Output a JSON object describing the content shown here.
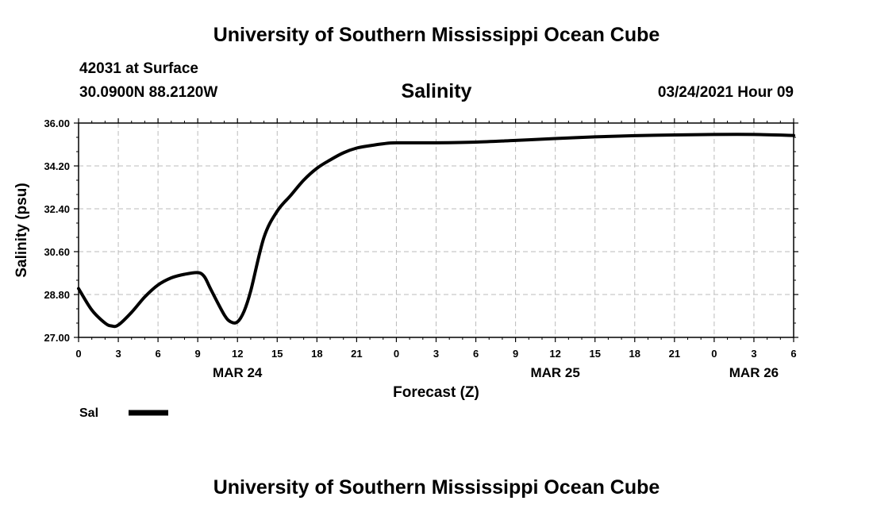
{
  "header": {
    "title": "University of Southern Mississippi Ocean Cube",
    "station": "42031 at Surface",
    "coordinates": "30.0900N 88.2120W",
    "datetime": "03/24/2021 Hour 09"
  },
  "footer": {
    "title": "University of Southern Mississippi Ocean Cube"
  },
  "chart_data": {
    "type": "line",
    "title": "Salinity",
    "xlabel": "Forecast (Z)",
    "ylabel": "Salinity (psu)",
    "xlim": [
      0,
      54
    ],
    "ylim": [
      27.0,
      36.0
    ],
    "y_ticks": [
      "27.00",
      "28.80",
      "30.60",
      "32.40",
      "34.20",
      "36.00"
    ],
    "x_tick_hours": [
      0,
      3,
      6,
      9,
      12,
      15,
      18,
      21,
      24,
      27,
      30,
      33,
      36,
      39,
      42,
      45,
      48,
      51,
      54
    ],
    "x_tick_labels": [
      "0",
      "3",
      "6",
      "9",
      "12",
      "15",
      "18",
      "21",
      "0",
      "3",
      "6",
      "9",
      "12",
      "15",
      "18",
      "21",
      "0",
      "3",
      "6"
    ],
    "date_labels": [
      {
        "hour": 12,
        "label": "MAR 24"
      },
      {
        "hour": 36,
        "label": "MAR 25"
      },
      {
        "hour": 51,
        "label": "MAR 26"
      }
    ],
    "grid": true,
    "legend": {
      "placement": "bottom-left",
      "entries": [
        "Sal"
      ]
    },
    "series": [
      {
        "name": "Sal",
        "color": "#000000",
        "x": [
          0,
          1,
          2,
          2.5,
          3,
          4,
          5,
          6,
          7,
          8,
          9,
          9.5,
          10,
          11,
          11.5,
          12,
          12.5,
          13,
          14,
          15,
          16,
          17,
          18,
          19,
          20,
          21,
          22,
          23,
          24,
          27,
          30,
          33,
          36,
          39,
          42,
          45,
          48,
          51,
          54
        ],
        "values": [
          29.05,
          28.15,
          27.6,
          27.48,
          27.52,
          28.05,
          28.7,
          29.2,
          29.5,
          29.65,
          29.72,
          29.55,
          29.0,
          27.95,
          27.65,
          27.65,
          28.1,
          28.95,
          31.2,
          32.3,
          32.95,
          33.6,
          34.1,
          34.45,
          34.75,
          34.95,
          35.05,
          35.13,
          35.17,
          35.17,
          35.2,
          35.27,
          35.35,
          35.42,
          35.47,
          35.5,
          35.52,
          35.52,
          35.48
        ]
      }
    ]
  }
}
